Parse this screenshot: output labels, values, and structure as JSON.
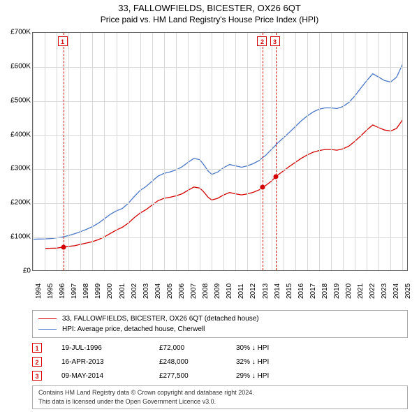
{
  "title": {
    "main": "33, FALLOWFIELDS, BICESTER, OX26 6QT",
    "sub": "Price paid vs. HM Land Registry's House Price Index (HPI)"
  },
  "chart": {
    "type": "line",
    "background_color": "#ffffff",
    "grid_color": "#d8d8d8",
    "border_color": "#666666",
    "x_years": [
      1994,
      1995,
      1996,
      1997,
      1998,
      1999,
      2000,
      2001,
      2002,
      2003,
      2004,
      2005,
      2006,
      2007,
      2008,
      2009,
      2010,
      2011,
      2012,
      2013,
      2014,
      2015,
      2016,
      2017,
      2018,
      2019,
      2020,
      2021,
      2022,
      2023,
      2024,
      2025
    ],
    "y_ticks": [
      0,
      100000,
      200000,
      300000,
      400000,
      500000,
      600000,
      700000
    ],
    "y_tick_labels": [
      "£0",
      "£100K",
      "£200K",
      "£300K",
      "£400K",
      "£500K",
      "£600K",
      "£700K"
    ],
    "ylim": [
      0,
      700000
    ],
    "x_range": [
      1994,
      2025.5
    ],
    "label_fontsize": 10,
    "title_fontsize": 13,
    "series": [
      {
        "name": "property",
        "label": "33, FALLOWFIELDS, BICESTER, OX26 6QT (detached house)",
        "color": "#d40000",
        "line_width": 1.3,
        "points": [
          [
            1995.0,
            68000
          ],
          [
            1995.5,
            68500
          ],
          [
            1996.0,
            69000
          ],
          [
            1996.55,
            72000
          ],
          [
            1997.0,
            74000
          ],
          [
            1997.5,
            76000
          ],
          [
            1998.0,
            80000
          ],
          [
            1998.5,
            84000
          ],
          [
            1999.0,
            88000
          ],
          [
            1999.5,
            94000
          ],
          [
            2000.0,
            102000
          ],
          [
            2000.5,
            112000
          ],
          [
            2001.0,
            122000
          ],
          [
            2001.5,
            130000
          ],
          [
            2002.0,
            142000
          ],
          [
            2002.5,
            158000
          ],
          [
            2003.0,
            172000
          ],
          [
            2003.5,
            182000
          ],
          [
            2004.0,
            195000
          ],
          [
            2004.5,
            208000
          ],
          [
            2005.0,
            215000
          ],
          [
            2005.5,
            218000
          ],
          [
            2006.0,
            222000
          ],
          [
            2006.5,
            228000
          ],
          [
            2007.0,
            238000
          ],
          [
            2007.5,
            248000
          ],
          [
            2008.0,
            245000
          ],
          [
            2008.3,
            235000
          ],
          [
            2008.7,
            218000
          ],
          [
            2009.0,
            210000
          ],
          [
            2009.5,
            215000
          ],
          [
            2010.0,
            225000
          ],
          [
            2010.5,
            232000
          ],
          [
            2011.0,
            228000
          ],
          [
            2011.5,
            225000
          ],
          [
            2012.0,
            228000
          ],
          [
            2012.5,
            233000
          ],
          [
            2013.0,
            240000
          ],
          [
            2013.29,
            248000
          ],
          [
            2013.5,
            252000
          ],
          [
            2014.0,
            265000
          ],
          [
            2014.35,
            277500
          ],
          [
            2014.5,
            282000
          ],
          [
            2015.0,
            295000
          ],
          [
            2015.5,
            308000
          ],
          [
            2016.0,
            320000
          ],
          [
            2016.5,
            332000
          ],
          [
            2017.0,
            342000
          ],
          [
            2017.5,
            350000
          ],
          [
            2018.0,
            355000
          ],
          [
            2018.5,
            358000
          ],
          [
            2019.0,
            358000
          ],
          [
            2019.5,
            356000
          ],
          [
            2020.0,
            360000
          ],
          [
            2020.5,
            368000
          ],
          [
            2021.0,
            382000
          ],
          [
            2021.5,
            398000
          ],
          [
            2022.0,
            415000
          ],
          [
            2022.5,
            430000
          ],
          [
            2023.0,
            422000
          ],
          [
            2023.5,
            415000
          ],
          [
            2024.0,
            412000
          ],
          [
            2024.5,
            420000
          ],
          [
            2025.0,
            445000
          ]
        ]
      },
      {
        "name": "hpi",
        "label": "HPI: Average price, detached house, Cherwell",
        "color": "#4a78c8",
        "line_width": 1.3,
        "points": [
          [
            1994.0,
            95000
          ],
          [
            1994.5,
            95500
          ],
          [
            1995.0,
            96000
          ],
          [
            1995.5,
            97000
          ],
          [
            1996.0,
            99000
          ],
          [
            1996.55,
            102000
          ],
          [
            1997.0,
            106000
          ],
          [
            1997.5,
            111000
          ],
          [
            1998.0,
            117000
          ],
          [
            1998.5,
            124000
          ],
          [
            1999.0,
            132000
          ],
          [
            1999.5,
            142000
          ],
          [
            2000.0,
            155000
          ],
          [
            2000.5,
            168000
          ],
          [
            2001.0,
            178000
          ],
          [
            2001.5,
            185000
          ],
          [
            2002.0,
            200000
          ],
          [
            2002.5,
            220000
          ],
          [
            2003.0,
            238000
          ],
          [
            2003.5,
            250000
          ],
          [
            2004.0,
            265000
          ],
          [
            2004.5,
            280000
          ],
          [
            2005.0,
            288000
          ],
          [
            2005.5,
            292000
          ],
          [
            2006.0,
            298000
          ],
          [
            2006.5,
            307000
          ],
          [
            2007.0,
            320000
          ],
          [
            2007.5,
            332000
          ],
          [
            2008.0,
            328000
          ],
          [
            2008.3,
            315000
          ],
          [
            2008.7,
            295000
          ],
          [
            2009.0,
            285000
          ],
          [
            2009.5,
            292000
          ],
          [
            2010.0,
            305000
          ],
          [
            2010.5,
            314000
          ],
          [
            2011.0,
            310000
          ],
          [
            2011.5,
            306000
          ],
          [
            2012.0,
            310000
          ],
          [
            2012.5,
            317000
          ],
          [
            2013.0,
            326000
          ],
          [
            2013.29,
            335000
          ],
          [
            2013.5,
            340000
          ],
          [
            2014.0,
            358000
          ],
          [
            2014.35,
            370000
          ],
          [
            2014.5,
            376000
          ],
          [
            2015.0,
            392000
          ],
          [
            2015.5,
            408000
          ],
          [
            2016.0,
            425000
          ],
          [
            2016.5,
            442000
          ],
          [
            2017.0,
            456000
          ],
          [
            2017.5,
            468000
          ],
          [
            2018.0,
            476000
          ],
          [
            2018.5,
            480000
          ],
          [
            2019.0,
            480000
          ],
          [
            2019.5,
            478000
          ],
          [
            2020.0,
            484000
          ],
          [
            2020.5,
            496000
          ],
          [
            2021.0,
            515000
          ],
          [
            2021.5,
            538000
          ],
          [
            2022.0,
            560000
          ],
          [
            2022.5,
            580000
          ],
          [
            2023.0,
            570000
          ],
          [
            2023.5,
            560000
          ],
          [
            2024.0,
            556000
          ],
          [
            2024.5,
            570000
          ],
          [
            2025.0,
            608000
          ]
        ]
      }
    ],
    "sale_markers": [
      {
        "n": "1",
        "year": 1996.55,
        "price": 72000
      },
      {
        "n": "2",
        "year": 2013.29,
        "price": 248000
      },
      {
        "n": "3",
        "year": 2014.35,
        "price": 277500
      }
    ]
  },
  "legend": {
    "rows": [
      {
        "color": "#d40000",
        "label": "33, FALLOWFIELDS, BICESTER, OX26 6QT (detached house)"
      },
      {
        "color": "#4a78c8",
        "label": "HPI: Average price, detached house, Cherwell"
      }
    ]
  },
  "sales_table": {
    "rows": [
      {
        "n": "1",
        "date": "19-JUL-1996",
        "price": "£72,000",
        "diff": "30% ↓ HPI"
      },
      {
        "n": "2",
        "date": "16-APR-2013",
        "price": "£248,000",
        "diff": "32% ↓ HPI"
      },
      {
        "n": "3",
        "date": "09-MAY-2014",
        "price": "£277,500",
        "diff": "29% ↓ HPI"
      }
    ]
  },
  "footer": {
    "line1": "Contains HM Land Registry data © Crown copyright and database right 2024.",
    "line2": "This data is licensed under the Open Government Licence v3.0."
  }
}
